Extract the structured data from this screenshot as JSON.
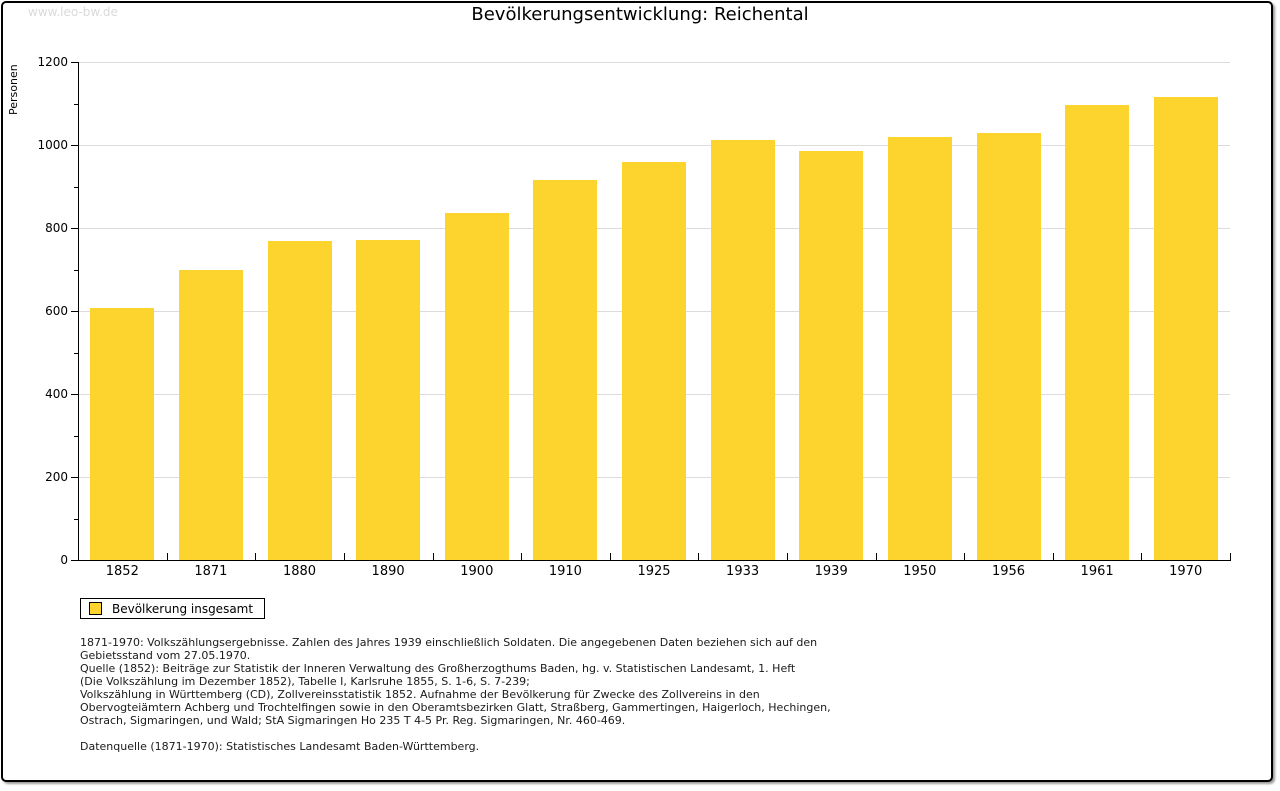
{
  "window": {
    "watermark": "www.leo-bw.de"
  },
  "chart_data": {
    "type": "bar",
    "title": "Bevölkerungsentwicklung: Reichental",
    "ylabel": "Personen",
    "xlabel": "",
    "categories": [
      "1852",
      "1871",
      "1880",
      "1890",
      "1900",
      "1910",
      "1925",
      "1933",
      "1939",
      "1950",
      "1956",
      "1961",
      "1970"
    ],
    "values": [
      608,
      700,
      768,
      771,
      836,
      915,
      960,
      1013,
      986,
      1019,
      1029,
      1096,
      1115
    ],
    "series_name": "Bevölkerung insgesamt",
    "ylim": [
      0,
      1200
    ],
    "ytick_step": 200,
    "minor_tick_step": 100,
    "grid": true,
    "legend_position": "bottom-left",
    "bar_color": "#FCD42D",
    "grid_color": "#DCDCDC"
  },
  "legend": {
    "label": "Bevölkerung insgesamt"
  },
  "notes": {
    "lines": [
      "1871-1970: Volkszählungsergebnisse. Zahlen des Jahres 1939 einschließlich Soldaten. Die angegebenen Daten beziehen sich auf den",
      "Gebietsstand vom 27.05.1970.",
      "Quelle (1852): Beiträge zur Statistik der Inneren Verwaltung des Großherzogthums Baden, hg. v. Statistischen Landesamt, 1. Heft",
      "(Die Volkszählung im Dezember 1852), Tabelle I, Karlsruhe 1855, S. 1-6, S. 7-239;",
      "Volkszählung in Württemberg (CD), Zollvereinsstatistik 1852. Aufnahme der Bevölkerung für Zwecke des Zollvereins in den",
      "Obervogteiämtern Achberg und Trochtelfingen sowie in den Oberamtsbezirken Glatt, Straßberg, Gammertingen, Haigerloch, Hechingen,",
      "Ostrach, Sigmaringen, und Wald; StA Sigmaringen Ho 235 T 4-5 Pr. Reg. Sigmaringen, Nr. 460-469."
    ],
    "datasource": "Datenquelle (1871-1970): Statistisches Landesamt Baden-Württemberg."
  }
}
